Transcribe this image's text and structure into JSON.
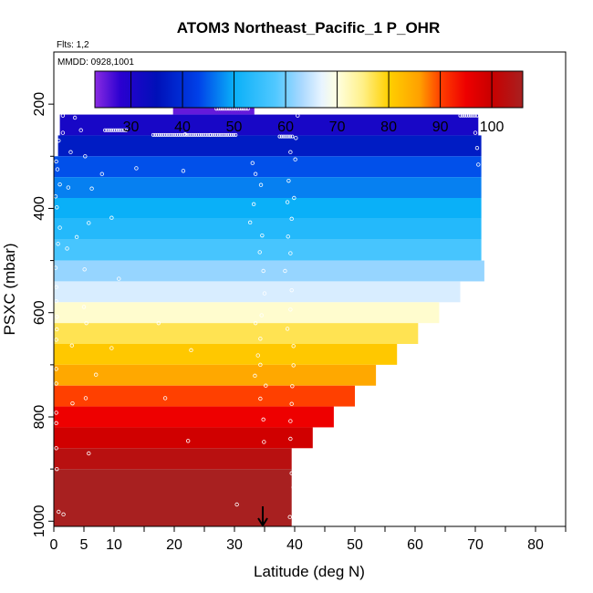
{
  "chart_data": {
    "type": "heatmap",
    "title": "ATOM3 Northeast_Pacific_1 P_OHR",
    "flights_label": "Flts: 1,2",
    "dates_label": "MMDD: 0928,1001",
    "xlabel": "Latitude (deg N)",
    "ylabel": "PSXC (mbar)",
    "xlim": [
      0,
      85
    ],
    "ylim": [
      1010,
      100
    ],
    "x_ticks": [
      0,
      5,
      10,
      20,
      30,
      40,
      50,
      60,
      70,
      80
    ],
    "y_ticks": [
      200,
      400,
      600,
      800,
      1000
    ],
    "colorbar": {
      "range": [
        23,
        106
      ],
      "ticks": [
        30,
        40,
        50,
        60,
        70,
        80,
        90,
        100
      ],
      "stops": [
        {
          "v": 23,
          "color": "#8a2be2"
        },
        {
          "v": 28,
          "color": "#2a00d0"
        },
        {
          "v": 35,
          "color": "#0010b8"
        },
        {
          "v": 43,
          "color": "#0040e8"
        },
        {
          "v": 50,
          "color": "#0ab0f8"
        },
        {
          "v": 58,
          "color": "#50c8ff"
        },
        {
          "v": 63,
          "color": "#a8d8ff"
        },
        {
          "v": 67,
          "color": "#e8f4ff"
        },
        {
          "v": 70,
          "color": "#ffffe0"
        },
        {
          "v": 75,
          "color": "#fff088"
        },
        {
          "v": 80,
          "color": "#ffd000"
        },
        {
          "v": 86,
          "color": "#ffa000"
        },
        {
          "v": 90,
          "color": "#ff4000"
        },
        {
          "v": 95,
          "color": "#ee0000"
        },
        {
          "v": 100,
          "color": "#c80000"
        },
        {
          "v": 106,
          "color": "#a82020"
        }
      ]
    },
    "bins": [
      {
        "p_top": 100,
        "p_bot": 180,
        "lat_min": 0,
        "lat_max": 0,
        "value": 25
      },
      {
        "p_top": 180,
        "p_bot": 220,
        "lat_min": 19.8,
        "lat_max": 33.3,
        "value": 25
      },
      {
        "p_top": 220,
        "p_bot": 260,
        "lat_min": 1,
        "lat_max": 70.5,
        "value": 31
      },
      {
        "p_top": 260,
        "p_bot": 300,
        "lat_min": 0.7,
        "lat_max": 71,
        "value": 37
      },
      {
        "p_top": 300,
        "p_bot": 340,
        "lat_min": 0,
        "lat_max": 71,
        "value": 44
      },
      {
        "p_top": 340,
        "p_bot": 380,
        "lat_min": 0,
        "lat_max": 71,
        "value": 47
      },
      {
        "p_top": 380,
        "p_bot": 420,
        "lat_min": 0,
        "lat_max": 71,
        "value": 50
      },
      {
        "p_top": 420,
        "p_bot": 460,
        "lat_min": 0,
        "lat_max": 71,
        "value": 53
      },
      {
        "p_top": 460,
        "p_bot": 500,
        "lat_min": 0,
        "lat_max": 71,
        "value": 57
      },
      {
        "p_top": 500,
        "p_bot": 540,
        "lat_min": 0,
        "lat_max": 71.5,
        "value": 62
      },
      {
        "p_top": 540,
        "p_bot": 580,
        "lat_min": 0,
        "lat_max": 67.5,
        "value": 66
      },
      {
        "p_top": 580,
        "p_bot": 620,
        "lat_min": 0,
        "lat_max": 64,
        "value": 71
      },
      {
        "p_top": 620,
        "p_bot": 660,
        "lat_min": 0,
        "lat_max": 60.5,
        "value": 77
      },
      {
        "p_top": 660,
        "p_bot": 700,
        "lat_min": 0,
        "lat_max": 57,
        "value": 81
      },
      {
        "p_top": 700,
        "p_bot": 740,
        "lat_min": 0,
        "lat_max": 53.5,
        "value": 85
      },
      {
        "p_top": 740,
        "p_bot": 780,
        "lat_min": 0,
        "lat_max": 50,
        "value": 90
      },
      {
        "p_top": 780,
        "p_bot": 820,
        "lat_min": 0,
        "lat_max": 46.5,
        "value": 95
      },
      {
        "p_top": 820,
        "p_bot": 860,
        "lat_min": 0,
        "lat_max": 43,
        "value": 99
      },
      {
        "p_top": 860,
        "p_bot": 900,
        "lat_min": 0,
        "lat_max": 39.5,
        "value": 103
      }
    ],
    "arrow_latitude": 34.7,
    "observation_points": [
      [
        1.5,
        222
      ],
      [
        3.5,
        226
      ],
      [
        0.6,
        245
      ],
      [
        1.5,
        255
      ],
      [
        4.5,
        250
      ],
      [
        0.8,
        270
      ],
      [
        2.8,
        292
      ],
      [
        5.2,
        300
      ],
      [
        0.4,
        310
      ],
      [
        0.6,
        325
      ],
      [
        8,
        334
      ],
      [
        1,
        354
      ],
      [
        2.4,
        360
      ],
      [
        6.3,
        362
      ],
      [
        0.3,
        377
      ],
      [
        0.5,
        398
      ],
      [
        9.6,
        418
      ],
      [
        5.8,
        428
      ],
      [
        1,
        437
      ],
      [
        3.8,
        455
      ],
      [
        0.7,
        468
      ],
      [
        2.2,
        477
      ],
      [
        0.3,
        514
      ],
      [
        5.1,
        517
      ],
      [
        10.8,
        535
      ],
      [
        0.4,
        551
      ],
      [
        0.4,
        578
      ],
      [
        5,
        589
      ],
      [
        0.5,
        608
      ],
      [
        5.4,
        620
      ],
      [
        17.4,
        620
      ],
      [
        0.5,
        632
      ],
      [
        0.4,
        652
      ],
      [
        3,
        663
      ],
      [
        9.6,
        668
      ],
      [
        22.8,
        672
      ],
      [
        0.4,
        708
      ],
      [
        7,
        719
      ],
      [
        0.4,
        736
      ],
      [
        5.3,
        764
      ],
      [
        3.1,
        774
      ],
      [
        0.4,
        792
      ],
      [
        18.5,
        764
      ],
      [
        22.3,
        846
      ],
      [
        0.4,
        812
      ],
      [
        0.4,
        860
      ],
      [
        5.8,
        870
      ],
      [
        0.5,
        900
      ],
      [
        21.8,
        258
      ],
      [
        21.5,
        328
      ],
      [
        13.7,
        323
      ],
      [
        33,
        313
      ],
      [
        33.5,
        334
      ],
      [
        34.4,
        355
      ],
      [
        33.2,
        392
      ],
      [
        32.6,
        427
      ],
      [
        34.6,
        452
      ],
      [
        34.2,
        484
      ],
      [
        34.8,
        520
      ],
      [
        35,
        563
      ],
      [
        34.5,
        605
      ],
      [
        34.3,
        650
      ],
      [
        33.9,
        682
      ],
      [
        33.4,
        721
      ],
      [
        34.3,
        765
      ],
      [
        34.8,
        805
      ],
      [
        34.9,
        848
      ],
      [
        39.3,
        292
      ],
      [
        39,
        347
      ],
      [
        38.8,
        388
      ],
      [
        39.5,
        420
      ],
      [
        38.9,
        454
      ],
      [
        39.3,
        486
      ],
      [
        38.4,
        520
      ],
      [
        39.5,
        557
      ],
      [
        39.3,
        594
      ],
      [
        38.8,
        631
      ],
      [
        39.8,
        664
      ],
      [
        39.8,
        701
      ],
      [
        39.6,
        741
      ],
      [
        39.5,
        775
      ],
      [
        39.3,
        808
      ],
      [
        39.3,
        842
      ],
      [
        39.9,
        880
      ],
      [
        39.5,
        908
      ],
      [
        39.8,
        935
      ],
      [
        40.1,
        962
      ],
      [
        39.2,
        992
      ],
      [
        40.3,
        1003
      ],
      [
        40.5,
        222
      ],
      [
        40.2,
        265
      ],
      [
        40.1,
        306
      ],
      [
        39.9,
        380
      ],
      [
        70,
        255
      ],
      [
        70.3,
        284
      ],
      [
        70.5,
        316
      ],
      [
        33.5,
        620
      ],
      [
        34.3,
        700
      ],
      [
        35.2,
        740
      ],
      [
        30.4,
        968
      ],
      [
        0.8,
        982
      ],
      [
        1.6,
        987
      ]
    ],
    "observation_tracks": [
      {
        "lat1": 27,
        "lat2": 32.5,
        "p": 209
      },
      {
        "lat1": 16.5,
        "lat2": 26,
        "p": 259
      },
      {
        "lat1": 26,
        "lat2": 30.5,
        "p": 259
      },
      {
        "lat1": 37.5,
        "lat2": 39.8,
        "p": 262
      },
      {
        "lat1": 67.5,
        "lat2": 70.5,
        "p": 222
      },
      {
        "lat1": 8.5,
        "lat2": 12,
        "p": 250
      }
    ]
  }
}
